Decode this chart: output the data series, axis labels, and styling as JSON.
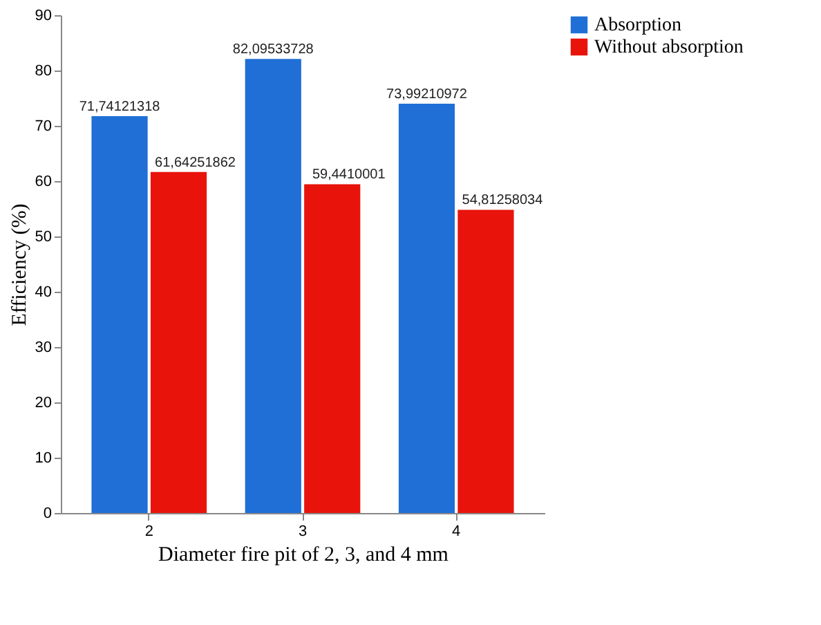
{
  "chart_data": {
    "type": "bar",
    "xlabel": "Diameter fire pit of 2, 3, and 4 mm",
    "ylabel": "Efficiency (%)",
    "categories": [
      "2",
      "3",
      "4"
    ],
    "series": [
      {
        "name": "Absorption",
        "color": "#1f6fd6",
        "values": [
          71.74121318,
          82.09533728,
          73.99210972
        ],
        "value_labels": [
          "71,74121318",
          "82,09533728",
          "73,99210972"
        ]
      },
      {
        "name": "Without absorption",
        "color": "#e8140c",
        "values": [
          61.64251862,
          59.4410001,
          54.81258034
        ],
        "value_labels": [
          "61,64251862",
          "59,4410001",
          "54,81258034"
        ]
      }
    ],
    "ylim": [
      0,
      90
    ],
    "yticks": [
      0,
      10,
      20,
      30,
      40,
      50,
      60,
      70,
      80,
      90
    ],
    "grid": false,
    "legend": "right"
  }
}
